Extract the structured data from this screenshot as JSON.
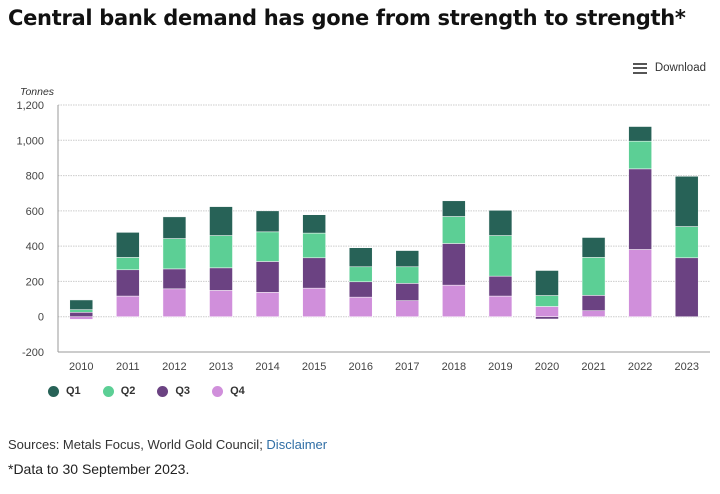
{
  "title": "Central bank demand has gone from strength to strength*",
  "download_label": "Download",
  "sources_text": "Sources: Metals Focus, World Gold Council; ",
  "disclaimer_link": "Disclaimer",
  "note": "*Data to 30 September 2023.",
  "chart_data": {
    "type": "bar",
    "stacked": true,
    "ylabel": "Tonnes",
    "ylim": [
      -200,
      1200
    ],
    "yticks": [
      -200,
      0,
      200,
      400,
      600,
      800,
      1000,
      1200
    ],
    "ytick_labels": [
      "-200",
      "0",
      "200",
      "400",
      "600",
      "800",
      "1,000",
      "1,200"
    ],
    "grid": true,
    "legend_position": "bottom-left",
    "categories": [
      "2010",
      "2011",
      "2012",
      "2013",
      "2014",
      "2015",
      "2016",
      "2017",
      "2018",
      "2019",
      "2020",
      "2021",
      "2022",
      "2023"
    ],
    "series": [
      {
        "name": "Q1",
        "color": "#276257",
        "values": [
          55,
          142,
          123,
          164,
          119,
          104,
          108,
          92,
          89,
          143,
          142,
          113,
          83,
          285
        ]
      },
      {
        "name": "Q2",
        "color": "#5ccf95",
        "values": [
          15,
          70,
          172,
          183,
          168,
          140,
          85,
          94,
          153,
          230,
          62,
          215,
          157,
          177
        ]
      },
      {
        "name": "Q3",
        "color": "#6b4282",
        "values": [
          25,
          149,
          113,
          128,
          175,
          172,
          87,
          98,
          236,
          113,
          -13,
          87,
          457,
          334
        ]
      },
      {
        "name": "Q4",
        "color": "#d08fdb",
        "values": [
          -15,
          117,
          158,
          149,
          138,
          162,
          111,
          91,
          179,
          117,
          58,
          34,
          381,
          0
        ]
      }
    ]
  }
}
